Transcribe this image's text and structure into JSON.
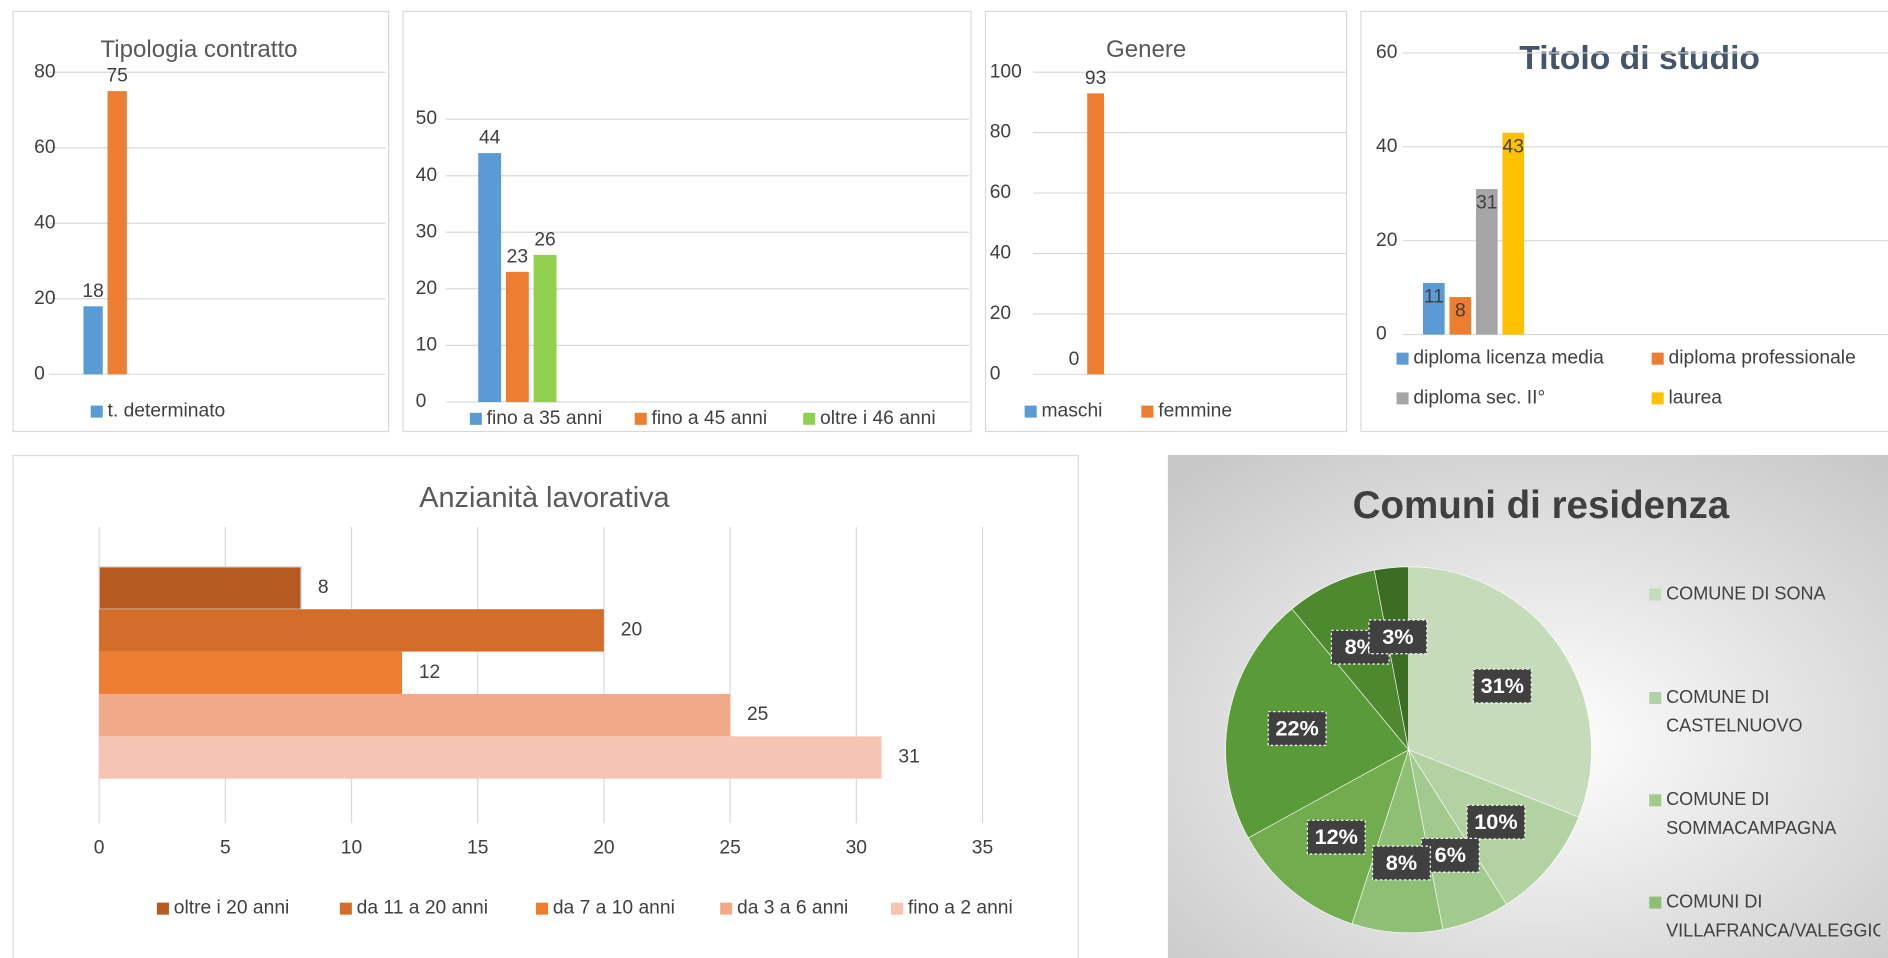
{
  "chart_data": [
    {
      "type": "bar",
      "title": "Tipologia contratto",
      "ylim": [
        0,
        80
      ],
      "yticks": [
        0,
        20,
        40,
        60,
        80
      ],
      "grid": true,
      "series": [
        {
          "name": "t. determinato",
          "color": "#5b9bd5",
          "values": [
            18
          ]
        },
        {
          "color": "#ed7d31",
          "values": [
            75
          ]
        }
      ]
    },
    {
      "type": "bar",
      "ylim": [
        0,
        50
      ],
      "yticks": [
        0,
        10,
        20,
        30,
        40,
        50
      ],
      "grid": true,
      "series": [
        {
          "name": "fino a 35 anni",
          "color": "#5b9bd5",
          "values": [
            44
          ]
        },
        {
          "name": "fino a 45 anni",
          "color": "#ed7d31",
          "values": [
            23
          ]
        },
        {
          "name": "oltre i 46 anni",
          "color": "#92d050",
          "values": [
            26
          ]
        }
      ]
    },
    {
      "type": "bar",
      "title": "Genere",
      "ylim": [
        0,
        100
      ],
      "yticks": [
        0,
        20,
        40,
        60,
        80,
        100
      ],
      "grid": true,
      "series": [
        {
          "name": "maschi",
          "color": "#5b9bd5",
          "values": [
            0
          ]
        },
        {
          "name": "femmine",
          "color": "#ed7d31",
          "values": [
            93
          ]
        }
      ]
    },
    {
      "type": "bar",
      "title": "Titolo di studio",
      "ylim": [
        0,
        60
      ],
      "yticks": [
        0,
        20,
        40,
        60
      ],
      "grid": true,
      "series": [
        {
          "name": "diploma licenza media",
          "color": "#5b9bd5",
          "values": [
            11
          ]
        },
        {
          "name": "diploma professionale",
          "color": "#ed7d31",
          "values": [
            8
          ]
        },
        {
          "name": "diploma sec. II°",
          "color": "#a5a5a5",
          "values": [
            31
          ]
        },
        {
          "name": "laurea",
          "color": "#ffc000",
          "values": [
            43
          ]
        }
      ]
    },
    {
      "type": "hbar",
      "title": "Anzianità lavorativa",
      "xlim": [
        0,
        35
      ],
      "xticks": [
        0,
        5,
        10,
        15,
        20,
        25,
        30,
        35
      ],
      "grid": true,
      "series": [
        {
          "name": "oltre i 20 anni",
          "color": "#b55a21",
          "values": [
            8
          ]
        },
        {
          "name": "da 11 a 20 anni",
          "color": "#d56d2a",
          "values": [
            20
          ]
        },
        {
          "name": "da 7 a 10 anni",
          "color": "#ed7d31",
          "values": [
            12
          ]
        },
        {
          "name": "da 3 a 6 anni",
          "color": "#f2a98a",
          "values": [
            25
          ]
        },
        {
          "name": "fino a 2 anni",
          "color": "#f5c4b2",
          "values": [
            31
          ]
        }
      ]
    },
    {
      "type": "pie",
      "title": "Comuni di residenza",
      "categories": [
        "COMUNE DI SONA",
        "COMUNE DI CASTELNUOVO",
        "COMUNE DI SOMMACAMPAGNA",
        "COMUNI DI VILLAFRANCA/VALEGGIO",
        null,
        null,
        null,
        null
      ],
      "values": [
        31,
        10,
        6,
        8,
        12,
        22,
        8,
        3
      ],
      "value_labels": [
        "31%",
        "10%",
        "6%",
        "8%",
        "12%",
        "22%",
        "8%",
        "3%"
      ],
      "colors": [
        "#c5dbb9",
        "#b3d2a3",
        "#a2c98e",
        "#8ebf75",
        "#72ac4e",
        "#5b9a39",
        "#4e892f",
        "#3d6d25"
      ]
    }
  ]
}
